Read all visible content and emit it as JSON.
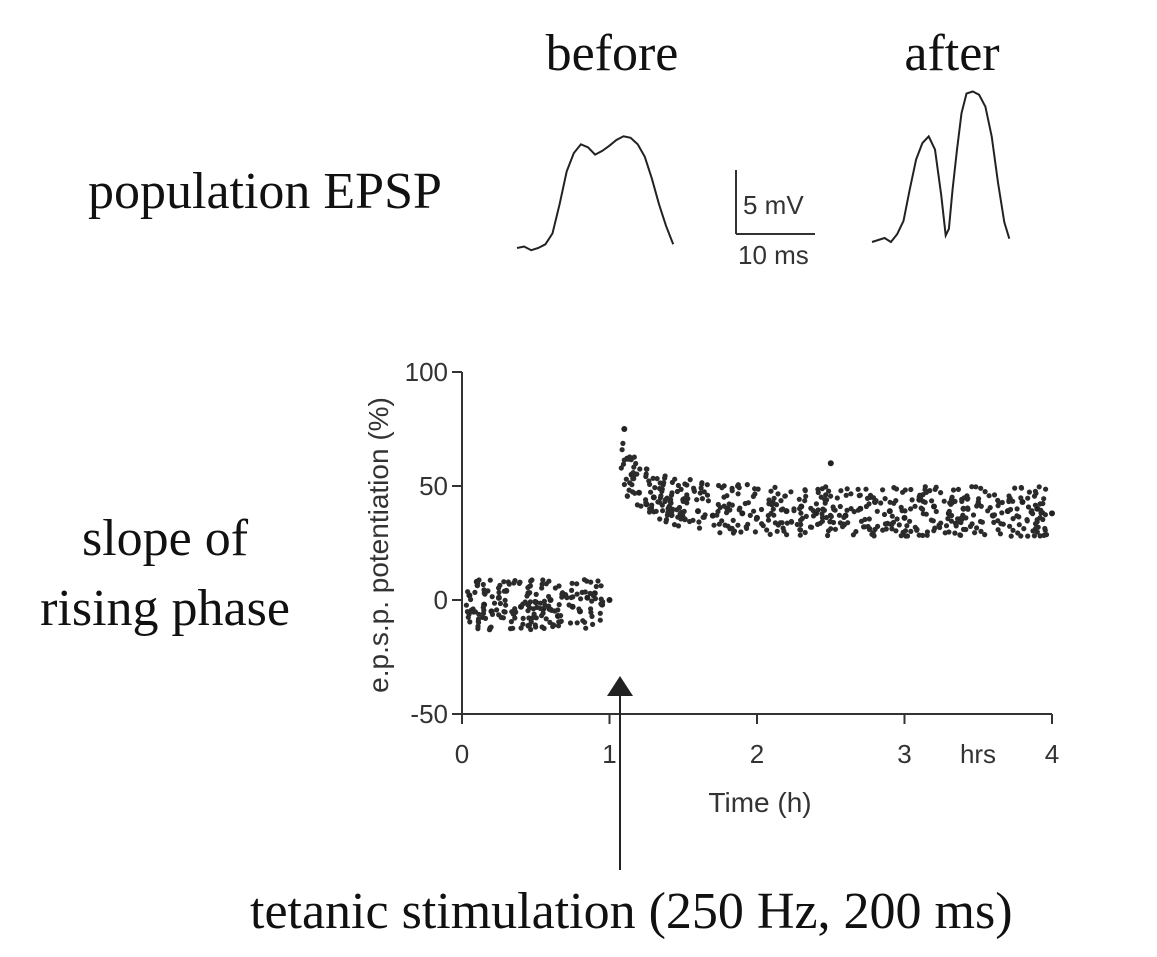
{
  "labels": {
    "before": "before",
    "after": "after",
    "population_epsp": "population EPSP",
    "slope_line1": "slope of",
    "slope_line2": "rising phase",
    "tetanic": "tetanic stimulation (250 Hz, 200 ms)"
  },
  "scale_bar": {
    "voltage": "5 mV",
    "time": "10 ms"
  },
  "traces": {
    "before": [
      [
        0,
        0
      ],
      [
        1,
        0.2
      ],
      [
        2,
        -0.3
      ],
      [
        3,
        0
      ],
      [
        4,
        0.5
      ],
      [
        5,
        2
      ],
      [
        6,
        6
      ],
      [
        7,
        10.5
      ],
      [
        8,
        13
      ],
      [
        9,
        14.2
      ],
      [
        10,
        13.8
      ],
      [
        11,
        12.8
      ],
      [
        12,
        13.3
      ],
      [
        13,
        14
      ],
      [
        14,
        14.8
      ],
      [
        15,
        15.3
      ],
      [
        16,
        15.1
      ],
      [
        17,
        14.2
      ],
      [
        18,
        12.5
      ],
      [
        19,
        9.5
      ],
      [
        20,
        6
      ],
      [
        21,
        3
      ],
      [
        22,
        0.5
      ]
    ],
    "after": [
      [
        0,
        0
      ],
      [
        1,
        0.3
      ],
      [
        2,
        0.6
      ],
      [
        3,
        0
      ],
      [
        4,
        1.2
      ],
      [
        5,
        3.2
      ],
      [
        6,
        8
      ],
      [
        7,
        12.5
      ],
      [
        8,
        15
      ],
      [
        9,
        16
      ],
      [
        10,
        14
      ],
      [
        11,
        7
      ],
      [
        11.7,
        1
      ],
      [
        12.2,
        2
      ],
      [
        12.8,
        8
      ],
      [
        13.5,
        14
      ],
      [
        14.2,
        19.5
      ],
      [
        15,
        22.5
      ],
      [
        16,
        22.8
      ],
      [
        17,
        22.3
      ],
      [
        18,
        20.5
      ],
      [
        19,
        16
      ],
      [
        20,
        9
      ],
      [
        21,
        3
      ],
      [
        21.8,
        0.5
      ]
    ]
  },
  "chart_data": {
    "type": "scatter",
    "title": "",
    "xlabel": "Time (h)",
    "ylabel": "e.p.s.p. potentiation (%)",
    "xlim": [
      0,
      4
    ],
    "ylim": [
      -50,
      100
    ],
    "xticks": [
      0,
      1,
      2,
      3,
      4
    ],
    "xtick_labels": [
      "0",
      "1",
      "2",
      "3",
      "4"
    ],
    "xunit_label": "hrs",
    "yticks": [
      -50,
      0,
      50,
      100
    ],
    "ytick_labels": [
      "-50",
      "0",
      "50",
      "100"
    ],
    "grid": false,
    "annotation": {
      "x": 1.05,
      "label": "tetanic stimulation (250 Hz, 200 ms)"
    },
    "series": [
      {
        "x": [
          0.05,
          0.1,
          0.15,
          0.2,
          0.25,
          0.3,
          0.35,
          0.4,
          0.45,
          0.5,
          0.55,
          0.6,
          0.65,
          0.7,
          0.75,
          0.8,
          0.85,
          0.9,
          0.95,
          1.0,
          1.1,
          1.12,
          1.15,
          1.2,
          1.25,
          1.3,
          1.4,
          1.5,
          1.6,
          1.7,
          1.8,
          1.9,
          2.0,
          2.1,
          2.2,
          2.3,
          2.4,
          2.5,
          2.6,
          2.7,
          2.8,
          2.9,
          3.0,
          3.1,
          3.2,
          3.3,
          3.4,
          3.5,
          3.6,
          3.7,
          3.8,
          3.9,
          4.0
        ],
        "y": [
          2,
          8,
          -2,
          -5,
          1,
          4,
          -6,
          -3,
          3,
          -1,
          -4,
          0,
          -7,
          2,
          -3,
          -5,
          1,
          3,
          -2,
          0,
          75,
          62,
          55,
          47,
          42,
          45,
          40,
          44,
          39,
          37,
          40,
          38,
          36,
          42,
          39,
          41,
          38,
          60,
          37,
          40,
          43,
          39,
          36,
          44,
          41,
          38,
          40,
          42,
          37,
          39,
          43,
          40,
          38
        ]
      }
    ]
  }
}
